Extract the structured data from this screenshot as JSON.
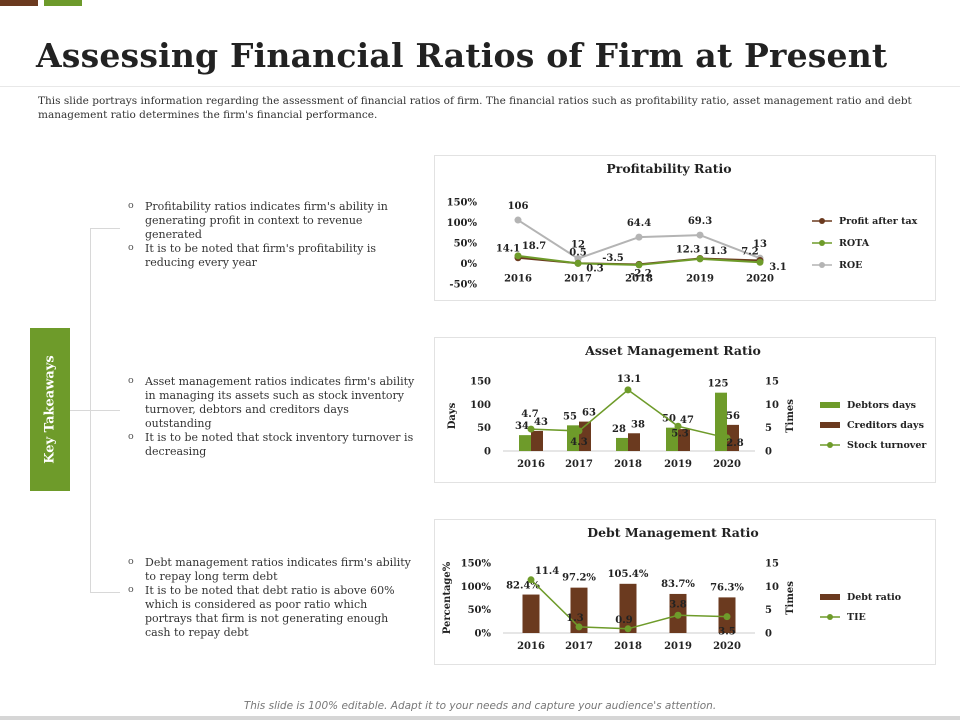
{
  "title": "Assessing Financial Ratios of Firm at Present",
  "description": "This slide portrays information regarding the assessment of financial ratios of firm. The financial ratios such as profitability ratio, asset management ratio and debt management ratio determines the firm's financial performance.",
  "key_takeaways_label": "Key Takeaways",
  "bullets": [
    [
      "Profitability ratios indicates firm's ability in generating profit in context to revenue generated",
      "It is to be noted that firm's profitability is reducing every year"
    ],
    [
      "Asset management ratios indicates firm's ability in managing its assets such as stock inventory turnover, debtors and creditors days outstanding",
      "It is to be noted that stock inventory turnover is decreasing"
    ],
    [
      "Debt management ratios indicates firm's ability to repay long term debt",
      "It is to be noted that debt ratio is above 60% which is considered as poor ratio which portrays that firm is not generating enough cash to repay debt"
    ]
  ],
  "footer": "This slide is 100% editable. Adapt it to your needs and capture your audience's attention.",
  "colors": {
    "brown": "#6b3a1f",
    "green": "#6e9b2a",
    "gray": "#b4b4b4"
  },
  "chart_data": [
    {
      "type": "line",
      "title": "Profitability Ratio",
      "categories": [
        "2016",
        "2017",
        "2018",
        "2019",
        "2020"
      ],
      "y_ticks": [
        "150%",
        "100%",
        "50%",
        "0%",
        "-50%"
      ],
      "ylim": [
        -50,
        150
      ],
      "series": [
        {
          "name": "Profit after tax",
          "color": "#6b3a1f",
          "values": [
            14.1,
            0.5,
            -2.2,
            12.3,
            7.2
          ],
          "labels": [
            "14.1",
            "0.5",
            "-2.2",
            "12.3",
            "7.2"
          ]
        },
        {
          "name": "ROTA",
          "color": "#6e9b2a",
          "values": [
            18.7,
            0.3,
            -3.5,
            11.3,
            3.1
          ],
          "labels": [
            "18.7",
            "0.3",
            "-3.5",
            "11.3",
            "3.1"
          ]
        },
        {
          "name": "ROE",
          "color": "#b4b4b4",
          "values": [
            106,
            12,
            64.4,
            69.3,
            13
          ],
          "labels": [
            "106",
            "12",
            "64.4",
            "69.3",
            "13"
          ]
        }
      ]
    },
    {
      "type": "bar",
      "title": "Asset Management Ratio",
      "categories": [
        "2016",
        "2017",
        "2018",
        "2019",
        "2020"
      ],
      "ylabel": "Days",
      "y2label": "Times",
      "y_ticks": [
        "150",
        "100",
        "50",
        "0"
      ],
      "y2_ticks": [
        "15",
        "10",
        "5",
        "0"
      ],
      "ylim": [
        0,
        150
      ],
      "y2lim": [
        0,
        15
      ],
      "series": [
        {
          "name": "Debtors days",
          "kind": "bar",
          "color": "#6e9b2a",
          "values": [
            34,
            55,
            28,
            50,
            125
          ]
        },
        {
          "name": "Creditors days",
          "kind": "bar",
          "color": "#6b3a1f",
          "values": [
            43,
            63,
            38,
            47,
            56
          ]
        },
        {
          "name": "Stock turnover",
          "kind": "line",
          "axis": "right",
          "color": "#6e9b2a",
          "values": [
            4.7,
            4.3,
            13.1,
            5.3,
            2.8
          ],
          "labels": [
            "4.7",
            "4.3",
            "13.1",
            "5.3",
            "2.8"
          ]
        }
      ]
    },
    {
      "type": "bar",
      "title": "Debt Management Ratio",
      "categories": [
        "2016",
        "2017",
        "2018",
        "2019",
        "2020"
      ],
      "ylabel": "Percentage%",
      "y2label": "Times",
      "y_ticks": [
        "150%",
        "100%",
        "50%",
        "0%"
      ],
      "y2_ticks": [
        "15",
        "10",
        "5",
        "0"
      ],
      "ylim": [
        0,
        150
      ],
      "y2lim": [
        0,
        15
      ],
      "series": [
        {
          "name": "Debt ratio",
          "kind": "bar",
          "color": "#6b3a1f",
          "values": [
            82.4,
            97.2,
            105.4,
            83.7,
            76.3
          ],
          "labels": [
            "82.4%",
            "97.2%",
            "105.4%",
            "83.7%",
            "76.3%"
          ]
        },
        {
          "name": "TIE",
          "kind": "line",
          "axis": "right",
          "color": "#6e9b2a",
          "values": [
            11.4,
            1.3,
            0.9,
            3.8,
            3.5
          ],
          "labels": [
            "11.4",
            "1.3",
            "0.9",
            "3.8",
            "3.5"
          ]
        }
      ]
    }
  ]
}
